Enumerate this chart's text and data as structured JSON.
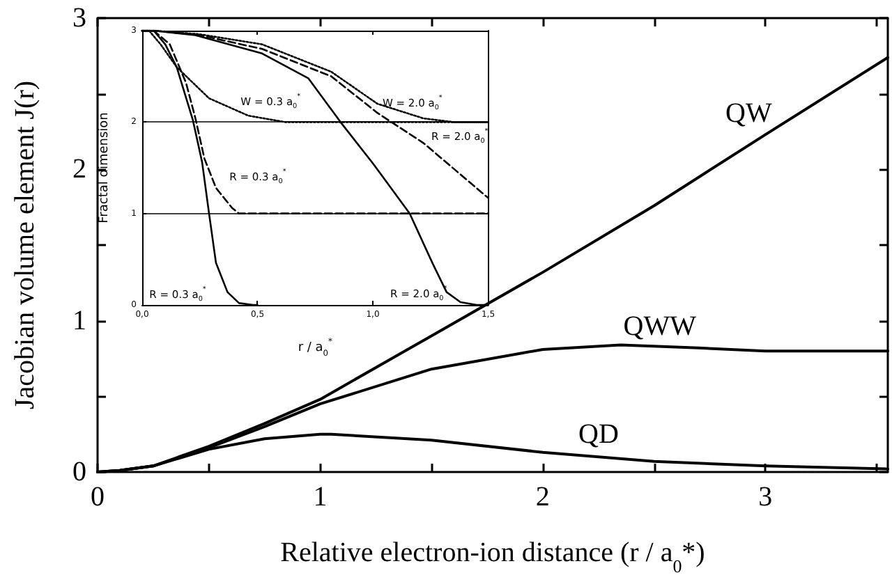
{
  "chart_data": [
    {
      "type": "line",
      "xlabel": "Relative electron-ion distance (r / a$_{0}$*)",
      "ylabel": "Jacobian volume element J(r)",
      "xlim": [
        0,
        3.55
      ],
      "ylim": [
        0,
        3
      ],
      "xticks": [
        0,
        {
          "value": 0.5,
          "label": null
        },
        1,
        {
          "value": 1.5,
          "label": null
        },
        2,
        {
          "value": 2.5,
          "label": null
        },
        3,
        {
          "value": 3.5,
          "label": null
        }
      ],
      "yticks": [
        0,
        {
          "value": 0.5,
          "label": null
        },
        1,
        {
          "value": 1.5,
          "label": null
        },
        2,
        {
          "value": 2.5,
          "label": null
        },
        3
      ],
      "grid": false,
      "marker": "none",
      "line_style": "solid",
      "series": [
        {
          "name": "QW",
          "color": "#000000",
          "x": [
            0,
            0.1,
            0.25,
            0.5,
            0.75,
            1,
            1.5,
            2,
            2.5,
            3,
            3.55
          ],
          "values": [
            0,
            0.01,
            0.04,
            0.17,
            0.32,
            0.48,
            0.9,
            1.32,
            1.76,
            2.23,
            2.74
          ]
        },
        {
          "name": "QWW",
          "color": "#000000",
          "x": [
            0,
            0.1,
            0.25,
            0.5,
            0.75,
            1,
            1.5,
            2,
            2.35,
            2.7,
            3,
            3.55
          ],
          "values": [
            0,
            0.01,
            0.04,
            0.16,
            0.3,
            0.45,
            0.68,
            0.81,
            0.84,
            0.82,
            0.8,
            0.8
          ]
        },
        {
          "name": "QD",
          "color": "#000000",
          "x": [
            0,
            0.1,
            0.25,
            0.5,
            0.75,
            1,
            1.05,
            1.5,
            2,
            2.5,
            3,
            3.55
          ],
          "values": [
            0,
            0.01,
            0.04,
            0.15,
            0.22,
            0.25,
            0.25,
            0.21,
            0.13,
            0.07,
            0.04,
            0.02
          ]
        }
      ]
    },
    {
      "type": "line",
      "xlabel": "r / a$_{0}$$^{*}$",
      "ylabel": "Fractal dimension",
      "xlim": [
        0,
        1.5
      ],
      "ylim": [
        0,
        3
      ],
      "xticks": [
        {
          "value": 0,
          "label": "0,0"
        },
        {
          "value": 0.5,
          "label": "0,5"
        },
        {
          "value": 1,
          "label": "1,0"
        },
        {
          "value": 1.5,
          "label": "1,5"
        }
      ],
      "yticks": [
        0,
        1,
        2,
        3
      ],
      "grid": false,
      "marker": "none",
      "ref_lines": [
        {
          "axis": "y",
          "value": 1
        },
        {
          "axis": "y",
          "value": 2
        }
      ],
      "series": [
        {
          "name": "R = 0.3 a$_{0}$$^{*}$",
          "color": "#000000",
          "line_style": "solid",
          "x": [
            0,
            0.05,
            0.1,
            0.15,
            0.22,
            0.26,
            0.29,
            0.32,
            0.37,
            0.42,
            0.48,
            0.5
          ],
          "values": [
            3,
            3,
            2.85,
            2.6,
            2.02,
            1.56,
            1.0,
            0.46,
            0.14,
            0.02,
            0,
            0
          ]
        },
        {
          "name": "R = 0.3 a$_{0}$$^{*}$",
          "color": "#000000",
          "line_style": "dashed",
          "x": [
            0,
            0.05,
            0.12,
            0.19,
            0.23,
            0.27,
            0.32,
            0.39,
            0.42,
            1.5
          ],
          "values": [
            3,
            3,
            2.85,
            2.43,
            2.05,
            1.6,
            1.28,
            1.06,
            1.0,
            1.0
          ]
        },
        {
          "name": "W = 0.3 a$_{0}$$^{*}$",
          "color": "#000000",
          "line_style": "dotted",
          "x": [
            0,
            0.03,
            0.08,
            0.15,
            0.29,
            0.46,
            0.62,
            1.5
          ],
          "values": [
            3,
            3,
            2.85,
            2.6,
            2.26,
            2.07,
            2.0,
            2.0
          ]
        },
        {
          "name": "R = 2.0 a$_{0}$$^{*}$",
          "color": "#000000",
          "line_style": "solid",
          "x": [
            0,
            0.05,
            0.23,
            0.52,
            0.72,
            0.86,
            1.0,
            1.16,
            1.26,
            1.32,
            1.38,
            1.45,
            1.5
          ],
          "values": [
            3,
            3,
            2.95,
            2.75,
            2.48,
            2.0,
            1.55,
            1.0,
            0.45,
            0.14,
            0.03,
            0,
            0
          ]
        },
        {
          "name": "R = 2.0 a$_{0}$$^{*}$",
          "color": "#000000",
          "line_style": "dashed",
          "x": [
            0,
            0.05,
            0.25,
            0.52,
            0.82,
            1.02,
            1.22,
            1.5
          ],
          "values": [
            3,
            3,
            2.95,
            2.8,
            2.5,
            2.1,
            1.77,
            1.17
          ]
        },
        {
          "name": "W = 2.0 a$_{0}$$^{*}$",
          "color": "#000000",
          "line_style": "dotted",
          "x": [
            0,
            0.05,
            0.25,
            0.52,
            0.82,
            1.02,
            1.22,
            1.35,
            1.5
          ],
          "values": [
            3,
            3,
            2.96,
            2.85,
            2.55,
            2.2,
            2.04,
            2.0,
            2.0
          ]
        }
      ]
    }
  ]
}
